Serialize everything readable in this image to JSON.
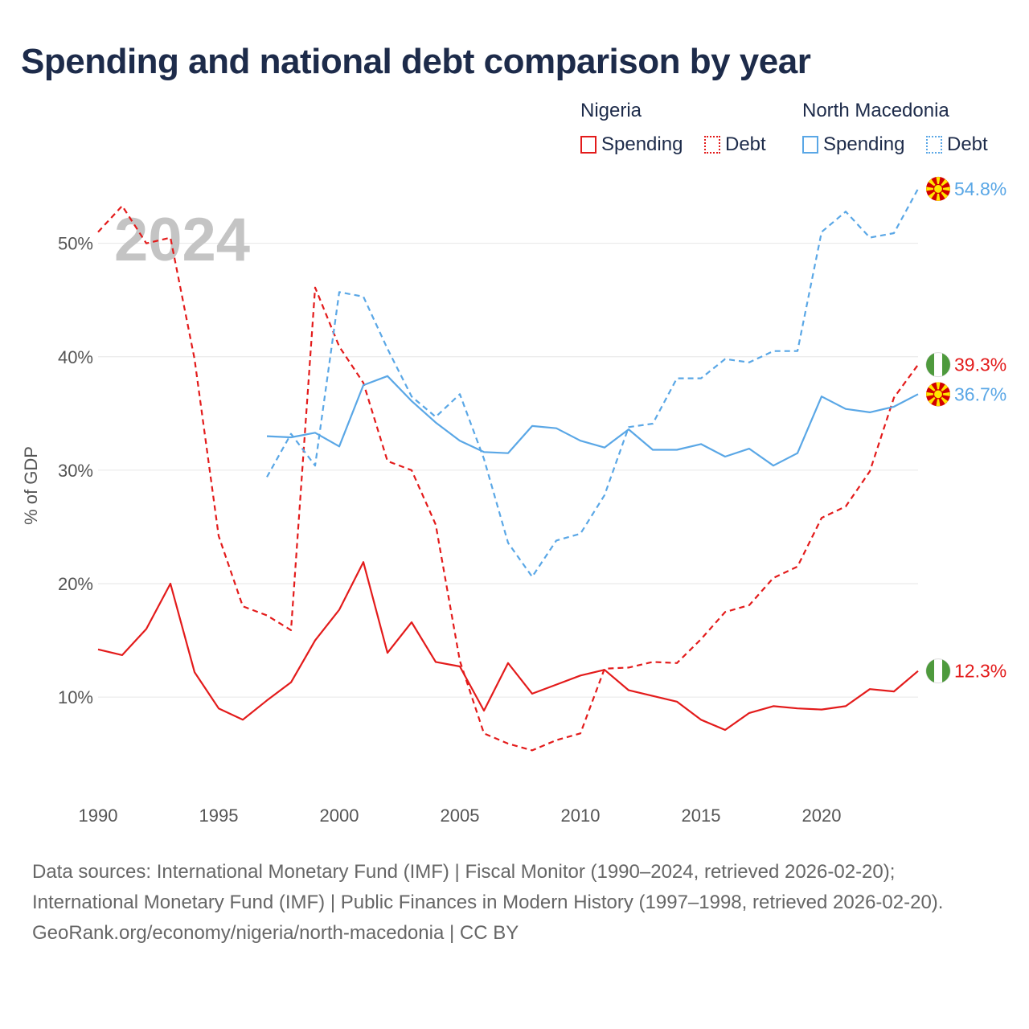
{
  "title": "Spending and national debt comparison by year",
  "legend": {
    "groups": [
      {
        "country": "Nigeria",
        "color": "#e31b1b",
        "items": [
          {
            "label": "Spending",
            "style": "solid"
          },
          {
            "label": "Debt",
            "style": "dotted"
          }
        ]
      },
      {
        "country": "North Macedonia",
        "color": "#5aa7e6",
        "items": [
          {
            "label": "Spending",
            "style": "solid"
          },
          {
            "label": "Debt",
            "style": "dotted"
          }
        ]
      }
    ]
  },
  "chart_data": {
    "type": "line",
    "year_label": "2024",
    "ylabel": "% of GDP",
    "xlim": [
      1990,
      2024
    ],
    "ylim": [
      2,
      56
    ],
    "x_ticks": [
      {
        "value": 1990,
        "label": "1990"
      },
      {
        "value": 1995,
        "label": "1995"
      },
      {
        "value": 2000,
        "label": "2000"
      },
      {
        "value": 2005,
        "label": "2005"
      },
      {
        "value": 2010,
        "label": "2010"
      },
      {
        "value": 2015,
        "label": "2015"
      },
      {
        "value": 2020,
        "label": "2020"
      }
    ],
    "y_ticks": [
      {
        "value": 10,
        "label": "10%"
      },
      {
        "value": 20,
        "label": "20%"
      },
      {
        "value": 30,
        "label": "30%"
      },
      {
        "value": 40,
        "label": "40%"
      },
      {
        "value": 50,
        "label": "50%"
      }
    ],
    "series": [
      {
        "name": "Nigeria Spending",
        "country": "Nigeria",
        "kind": "Spending",
        "color": "#e31b1b",
        "dash": false,
        "start_year": 1990,
        "values": [
          14.2,
          13.7,
          16.0,
          20.0,
          12.2,
          9.0,
          8.0,
          9.7,
          11.3,
          15.0,
          17.7,
          21.9,
          13.9,
          16.6,
          13.1,
          12.7,
          8.8,
          13.0,
          10.3,
          11.1,
          11.9,
          12.4,
          10.6,
          10.1,
          9.6,
          8.0,
          7.1,
          8.6,
          9.2,
          9.0,
          8.9,
          9.2,
          10.7,
          10.5,
          12.3
        ],
        "end_label": "12.3%",
        "end_flag": "nigeria-flag"
      },
      {
        "name": "Nigeria Debt",
        "country": "Nigeria",
        "kind": "Debt",
        "color": "#e31b1b",
        "dash": true,
        "start_year": 1990,
        "values": [
          51.0,
          53.3,
          50.0,
          50.5,
          39.8,
          24.2,
          18.0,
          17.2,
          15.9,
          46.1,
          40.9,
          37.7,
          30.8,
          30.0,
          25.2,
          13.2,
          6.8,
          5.9,
          5.3,
          6.2,
          6.8,
          12.5,
          12.6,
          13.1,
          13.0,
          15.1,
          17.5,
          18.1,
          20.5,
          21.5,
          25.8,
          26.8,
          29.9,
          36.4,
          39.3
        ],
        "end_label": "39.3%",
        "end_flag": "nigeria-flag"
      },
      {
        "name": "North Macedonia Spending",
        "country": "North Macedonia",
        "kind": "Spending",
        "color": "#5aa7e6",
        "dash": false,
        "start_year": 1997,
        "values": [
          33.0,
          32.9,
          33.3,
          32.1,
          37.5,
          38.3,
          36.1,
          34.2,
          32.6,
          31.6,
          31.5,
          33.9,
          33.7,
          32.6,
          32.0,
          33.6,
          31.8,
          31.8,
          32.3,
          31.2,
          31.9,
          30.4,
          31.5,
          36.5,
          35.4,
          35.1,
          35.6,
          36.7
        ],
        "end_label": "36.7%",
        "end_flag": "north-macedonia-flag"
      },
      {
        "name": "North Macedonia Debt",
        "country": "North Macedonia",
        "kind": "Debt",
        "color": "#5aa7e6",
        "dash": true,
        "start_year": 1997,
        "values": [
          29.4,
          33.2,
          30.4,
          45.7,
          45.3,
          40.7,
          36.5,
          34.7,
          36.7,
          31.0,
          23.6,
          20.6,
          23.8,
          24.4,
          27.8,
          33.8,
          34.1,
          38.1,
          38.1,
          39.8,
          39.5,
          40.5,
          40.5,
          51.0,
          52.8,
          50.5,
          50.9,
          54.8
        ],
        "end_label": "54.8%",
        "end_flag": "north-macedonia-flag"
      }
    ]
  },
  "sources": {
    "line1": "Data sources: International Monetary Fund (IMF) | Fiscal Monitor (1990–2024, retrieved 2026-02-20); International Monetary Fund (IMF) | Public Finances in Modern History (1997–1998, retrieved 2026-02-20).",
    "line2": "GeoRank.org/economy/nigeria/north-macedonia | CC BY"
  }
}
